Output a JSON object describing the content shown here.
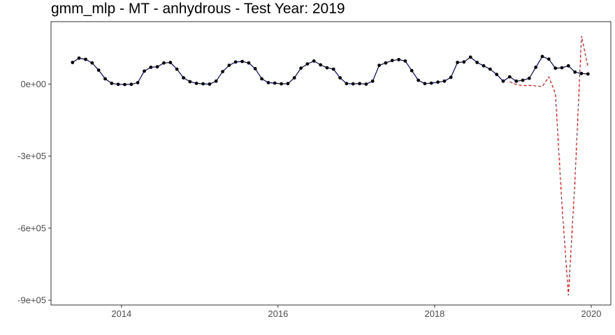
{
  "chart_data": {
    "type": "line",
    "title": "gmm_mlp - MT - anhydrous - Test Year: 2019",
    "xlabel": "",
    "ylabel": "",
    "xlim": [
      2013.1,
      2020.25
    ],
    "ylim": [
      -920000,
      260000
    ],
    "x_ticks": [
      {
        "value": 2014,
        "label": "2014"
      },
      {
        "value": 2016,
        "label": "2016"
      },
      {
        "value": 2018,
        "label": "2018"
      },
      {
        "value": 2020,
        "label": "2020"
      }
    ],
    "y_ticks": [
      {
        "value": 0,
        "label": "0e+00"
      },
      {
        "value": -300000,
        "label": "-3e+05"
      },
      {
        "value": -600000,
        "label": "-6e+05"
      },
      {
        "value": -900000,
        "label": "-9e+05"
      }
    ],
    "grid": false,
    "series": [
      {
        "style": "solid-with-points",
        "color": "#000080",
        "point_color": "#000000",
        "x": [
          2013.375,
          2013.458,
          2013.542,
          2013.625,
          2013.708,
          2013.792,
          2013.875,
          2013.958,
          2014.042,
          2014.125,
          2014.208,
          2014.292,
          2014.375,
          2014.458,
          2014.542,
          2014.625,
          2014.708,
          2014.792,
          2014.875,
          2014.958,
          2015.042,
          2015.125,
          2015.208,
          2015.292,
          2015.375,
          2015.458,
          2015.542,
          2015.625,
          2015.708,
          2015.792,
          2015.875,
          2015.958,
          2016.042,
          2016.125,
          2016.208,
          2016.292,
          2016.375,
          2016.458,
          2016.542,
          2016.625,
          2016.708,
          2016.792,
          2016.875,
          2016.958,
          2017.042,
          2017.125,
          2017.208,
          2017.292,
          2017.375,
          2017.458,
          2017.542,
          2017.625,
          2017.708,
          2017.792,
          2017.875,
          2017.958,
          2018.042,
          2018.125,
          2018.208,
          2018.292,
          2018.375,
          2018.458,
          2018.542,
          2018.625,
          2018.708,
          2018.792,
          2018.875,
          2018.958,
          2019.042,
          2019.125,
          2019.208,
          2019.292,
          2019.375,
          2019.458,
          2019.542,
          2019.625,
          2019.708,
          2019.792,
          2019.875,
          2019.958
        ],
        "y": [
          90000,
          108000,
          103000,
          88000,
          58000,
          22000,
          3000,
          -1000,
          -2000,
          -1000,
          6000,
          54000,
          70000,
          72000,
          88000,
          90000,
          62000,
          26000,
          10000,
          3000,
          1000,
          0,
          12000,
          52000,
          78000,
          92000,
          94000,
          88000,
          64000,
          22000,
          6000,
          4000,
          1000,
          2000,
          26000,
          66000,
          84000,
          96000,
          80000,
          68000,
          62000,
          26000,
          2000,
          1000,
          2000,
          0,
          12000,
          78000,
          88000,
          98000,
          102000,
          96000,
          56000,
          16000,
          2000,
          4000,
          8000,
          12000,
          28000,
          90000,
          92000,
          112000,
          90000,
          76000,
          62000,
          40000,
          12000,
          30000,
          12000,
          16000,
          24000,
          70000,
          115000,
          104000,
          66000,
          68000,
          76000,
          50000,
          44000,
          42000
        ]
      },
      {
        "style": "dashed",
        "color": "#ff0000",
        "x": [
          2018.958,
          2019.042,
          2019.125,
          2019.208,
          2019.292,
          2019.375,
          2019.458,
          2019.542,
          2019.625,
          2019.708,
          2019.792,
          2019.875,
          2019.958
        ],
        "y": [
          10000,
          -2000,
          -6000,
          -5000,
          -8000,
          -10000,
          30000,
          -40000,
          -500000,
          -880000,
          -400000,
          200000,
          70000
        ]
      }
    ]
  }
}
